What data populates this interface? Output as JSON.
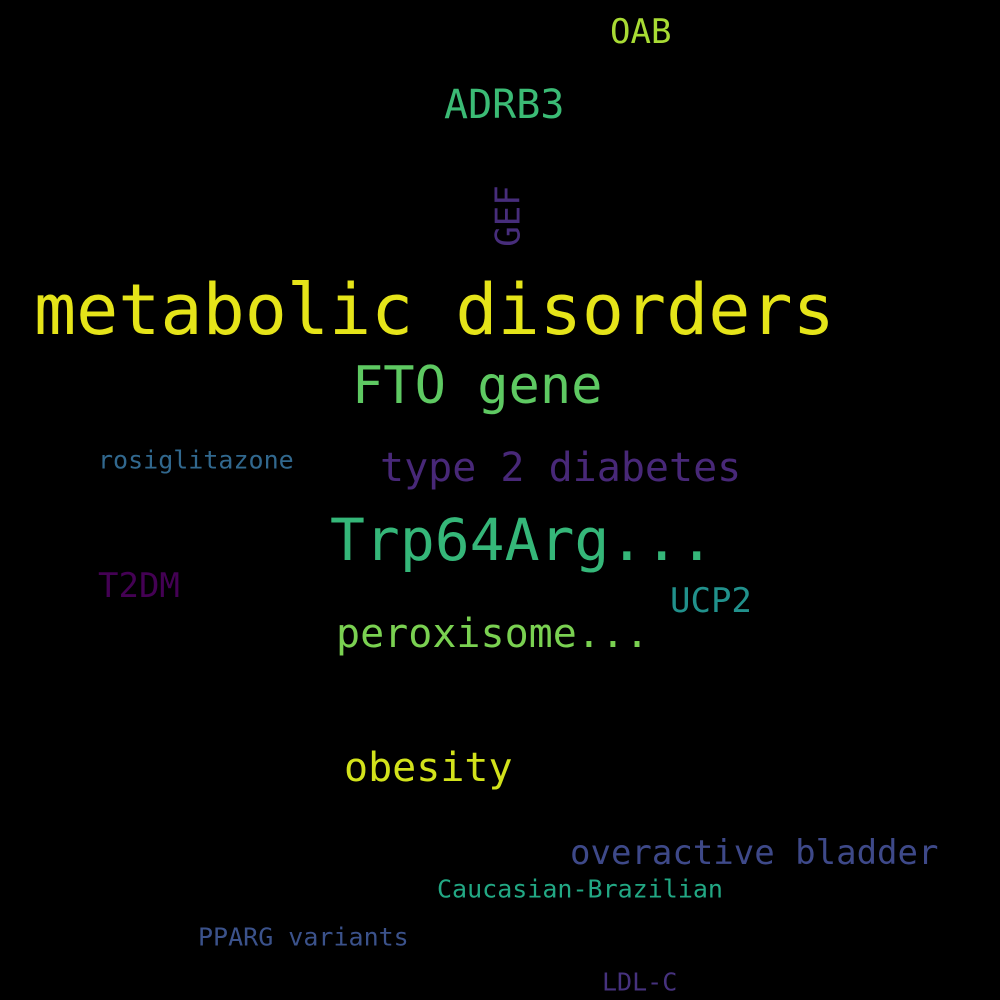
{
  "words": [
    {
      "text": "metabolic disorders",
      "color": "#e5e419"
    },
    {
      "text": "FTO gene",
      "color": "#5ec962"
    },
    {
      "text": "Trp64Arg...",
      "color": "#35b779"
    },
    {
      "text": "type 2 diabetes",
      "color": "#482878"
    },
    {
      "text": "peroxisome...",
      "color": "#7ad151"
    },
    {
      "text": "obesity",
      "color": "#d2e21b"
    },
    {
      "text": "ADRB3",
      "color": "#3bbb75"
    },
    {
      "text": "OAB",
      "color": "#a8db34"
    },
    {
      "text": "GEF",
      "color": "#472d7b"
    },
    {
      "text": "overactive bladder",
      "color": "#3e4989"
    },
    {
      "text": "UCP2",
      "color": "#21918c"
    },
    {
      "text": "T2DM",
      "color": "#440154"
    },
    {
      "text": "rosiglitazone",
      "color": "#31688e"
    },
    {
      "text": "Caucasian-Brazilian",
      "color": "#22a884"
    },
    {
      "text": "PPARG variants",
      "color": "#3b528b"
    },
    {
      "text": "LDL-C",
      "color": "#46327e"
    }
  ]
}
